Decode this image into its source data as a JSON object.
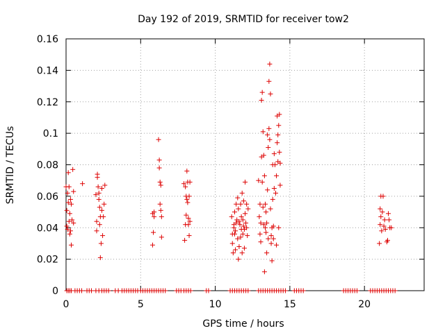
{
  "chart_data": {
    "type": "scatter",
    "title": "Day 192 of 2019, SRMTID for receiver tow2",
    "xlabel": "GPS time / hours",
    "ylabel": "SRMTID / TECUs",
    "xlim": [
      0,
      24
    ],
    "ylim": [
      0,
      0.16
    ],
    "xticks": [
      0,
      5,
      10,
      15,
      20
    ],
    "xtick_labels": [
      "0",
      "5",
      "10",
      "15",
      "20"
    ],
    "yticks": [
      0,
      0.02,
      0.04,
      0.06,
      0.08,
      0.1,
      0.12,
      0.14,
      0.16
    ],
    "ytick_labels": [
      "0",
      "0.02",
      "0.04",
      "0.06",
      "0.08",
      "0.1",
      "0.12",
      "0.14",
      "0.16"
    ],
    "grid": true,
    "marker": "plus",
    "color": "#dd0000",
    "series": [
      {
        "name": "SRMTID",
        "points": [
          [
            0.0,
            0.066
          ],
          [
            0.05,
            0.051
          ],
          [
            0.05,
            0.041
          ],
          [
            0.1,
            0.039
          ],
          [
            0.1,
            0.062
          ],
          [
            0.15,
            0.056
          ],
          [
            0.15,
            0.075
          ],
          [
            0.2,
            0.066
          ],
          [
            0.2,
            0.044
          ],
          [
            0.25,
            0.036
          ],
          [
            0.25,
            0.049
          ],
          [
            0.3,
            0.038
          ],
          [
            0.3,
            0.058
          ],
          [
            0.35,
            0.029
          ],
          [
            0.35,
            0.055
          ],
          [
            0.4,
            0.045
          ],
          [
            0.45,
            0.077
          ],
          [
            0.5,
            0.043
          ],
          [
            0.5,
            0.063
          ],
          [
            1.1,
            0.068
          ],
          [
            2.0,
            0.061
          ],
          [
            2.05,
            0.044
          ],
          [
            2.05,
            0.038
          ],
          [
            2.1,
            0.074
          ],
          [
            2.1,
            0.072
          ],
          [
            2.15,
            0.066
          ],
          [
            2.2,
            0.062
          ],
          [
            2.2,
            0.058
          ],
          [
            2.25,
            0.042
          ],
          [
            2.25,
            0.053
          ],
          [
            2.3,
            0.021
          ],
          [
            2.3,
            0.047
          ],
          [
            2.35,
            0.03
          ],
          [
            2.4,
            0.065
          ],
          [
            2.4,
            0.051
          ],
          [
            2.45,
            0.035
          ],
          [
            2.5,
            0.047
          ],
          [
            2.55,
            0.055
          ],
          [
            2.6,
            0.067
          ],
          [
            5.8,
            0.029
          ],
          [
            5.8,
            0.049
          ],
          [
            5.85,
            0.037
          ],
          [
            5.9,
            0.047
          ],
          [
            5.9,
            0.05
          ],
          [
            6.2,
            0.096
          ],
          [
            6.25,
            0.083
          ],
          [
            6.25,
            0.078
          ],
          [
            6.3,
            0.069
          ],
          [
            6.3,
            0.055
          ],
          [
            6.35,
            0.067
          ],
          [
            6.35,
            0.051
          ],
          [
            6.4,
            0.034
          ],
          [
            6.4,
            0.047
          ],
          [
            7.9,
            0.068
          ],
          [
            7.95,
            0.032
          ],
          [
            8.0,
            0.042
          ],
          [
            8.0,
            0.066
          ],
          [
            8.05,
            0.048
          ],
          [
            8.05,
            0.06
          ],
          [
            8.1,
            0.076
          ],
          [
            8.1,
            0.058
          ],
          [
            8.15,
            0.056
          ],
          [
            8.15,
            0.069
          ],
          [
            8.2,
            0.046
          ],
          [
            8.2,
            0.042
          ],
          [
            8.25,
            0.035
          ],
          [
            8.25,
            0.06
          ],
          [
            8.3,
            0.069
          ],
          [
            8.3,
            0.044
          ],
          [
            11.1,
            0.047
          ],
          [
            11.15,
            0.036
          ],
          [
            11.15,
            0.03
          ],
          [
            11.2,
            0.024
          ],
          [
            11.25,
            0.042
          ],
          [
            11.25,
            0.04
          ],
          [
            11.3,
            0.036
          ],
          [
            11.3,
            0.05
          ],
          [
            11.35,
            0.026
          ],
          [
            11.35,
            0.038
          ],
          [
            11.4,
            0.055
          ],
          [
            11.4,
            0.043
          ],
          [
            11.45,
            0.045
          ],
          [
            11.5,
            0.033
          ],
          [
            11.5,
            0.059
          ],
          [
            11.55,
            0.02
          ],
          [
            11.55,
            0.052
          ],
          [
            11.6,
            0.044
          ],
          [
            11.6,
            0.028
          ],
          [
            11.65,
            0.042
          ],
          [
            11.7,
            0.055
          ],
          [
            11.7,
            0.034
          ],
          [
            11.75,
            0.039
          ],
          [
            11.75,
            0.047
          ],
          [
            11.8,
            0.024
          ],
          [
            11.8,
            0.062
          ],
          [
            11.85,
            0.045
          ],
          [
            11.85,
            0.036
          ],
          [
            11.9,
            0.041
          ],
          [
            11.9,
            0.057
          ],
          [
            11.95,
            0.039
          ],
          [
            11.95,
            0.027
          ],
          [
            12.0,
            0.069
          ],
          [
            12.0,
            0.049
          ],
          [
            12.05,
            0.043
          ],
          [
            12.1,
            0.04
          ],
          [
            12.1,
            0.055
          ],
          [
            12.15,
            0.035
          ],
          [
            12.2,
            0.052
          ],
          [
            12.9,
            0.07
          ],
          [
            12.95,
            0.047
          ],
          [
            13.0,
            0.055
          ],
          [
            13.0,
            0.036
          ],
          [
            13.05,
            0.043
          ],
          [
            13.05,
            0.031
          ],
          [
            13.1,
            0.121
          ],
          [
            13.1,
            0.085
          ],
          [
            13.15,
            0.126
          ],
          [
            13.15,
            0.069
          ],
          [
            13.2,
            0.101
          ],
          [
            13.2,
            0.053
          ],
          [
            13.25,
            0.086
          ],
          [
            13.25,
            0.042
          ],
          [
            13.3,
            0.012
          ],
          [
            13.3,
            0.073
          ],
          [
            13.35,
            0.04
          ],
          [
            13.35,
            0.055
          ],
          [
            13.4,
            0.037
          ],
          [
            13.4,
            0.05
          ],
          [
            13.45,
            0.024
          ],
          [
            13.45,
            0.043
          ],
          [
            13.5,
            0.099
          ],
          [
            13.5,
            0.064
          ],
          [
            13.55,
            0.091
          ],
          [
            13.55,
            0.033
          ],
          [
            13.6,
            0.133
          ],
          [
            13.6,
            0.103
          ],
          [
            13.65,
            0.144
          ],
          [
            13.65,
            0.096
          ],
          [
            13.7,
            0.125
          ],
          [
            13.7,
            0.052
          ],
          [
            13.75,
            0.035
          ],
          [
            13.75,
            0.03
          ],
          [
            13.8,
            0.019
          ],
          [
            13.8,
            0.04
          ],
          [
            13.85,
            0.08
          ],
          [
            13.85,
            0.058
          ],
          [
            13.9,
            0.033
          ],
          [
            13.9,
            0.041
          ],
          [
            13.95,
            0.087
          ],
          [
            13.95,
            0.065
          ],
          [
            14.0,
            0.08
          ],
          [
            14.05,
            0.062
          ],
          [
            14.1,
            0.029
          ],
          [
            14.1,
            0.073
          ],
          [
            14.15,
            0.111
          ],
          [
            14.15,
            0.094
          ],
          [
            14.2,
            0.099
          ],
          [
            14.2,
            0.082
          ],
          [
            14.25,
            0.04
          ],
          [
            14.25,
            0.105
          ],
          [
            14.3,
            0.088
          ],
          [
            14.3,
            0.112
          ],
          [
            14.35,
            0.081
          ],
          [
            14.35,
            0.067
          ],
          [
            21.0,
            0.03
          ],
          [
            21.05,
            0.042
          ],
          [
            21.05,
            0.052
          ],
          [
            21.1,
            0.06
          ],
          [
            21.1,
            0.047
          ],
          [
            21.15,
            0.038
          ],
          [
            21.2,
            0.05
          ],
          [
            21.25,
            0.06
          ],
          [
            21.3,
            0.041
          ],
          [
            21.35,
            0.045
          ],
          [
            21.4,
            0.039
          ],
          [
            21.5,
            0.031
          ],
          [
            21.55,
            0.032
          ],
          [
            21.6,
            0.049
          ],
          [
            21.65,
            0.045
          ],
          [
            21.7,
            0.04
          ],
          [
            21.8,
            0.04
          ]
        ]
      },
      {
        "name": "zero-values",
        "points": [
          [
            0.05,
            0
          ],
          [
            0.15,
            0
          ],
          [
            0.25,
            0
          ],
          [
            0.35,
            0
          ],
          [
            0.6,
            0
          ],
          [
            0.75,
            0
          ],
          [
            0.9,
            0
          ],
          [
            1.05,
            0
          ],
          [
            1.4,
            0
          ],
          [
            1.55,
            0
          ],
          [
            1.7,
            0
          ],
          [
            2.0,
            0
          ],
          [
            2.2,
            0
          ],
          [
            2.4,
            0
          ],
          [
            2.55,
            0
          ],
          [
            2.7,
            0
          ],
          [
            2.85,
            0
          ],
          [
            3.3,
            0
          ],
          [
            3.5,
            0
          ],
          [
            3.75,
            0
          ],
          [
            3.9,
            0
          ],
          [
            4.05,
            0
          ],
          [
            4.2,
            0
          ],
          [
            4.35,
            0
          ],
          [
            4.5,
            0
          ],
          [
            4.65,
            0
          ],
          [
            4.8,
            0
          ],
          [
            5.0,
            0
          ],
          [
            5.15,
            0
          ],
          [
            5.3,
            0
          ],
          [
            5.45,
            0
          ],
          [
            5.6,
            0
          ],
          [
            5.75,
            0
          ],
          [
            5.9,
            0
          ],
          [
            6.05,
            0
          ],
          [
            6.2,
            0
          ],
          [
            6.35,
            0
          ],
          [
            6.5,
            0
          ],
          [
            6.65,
            0
          ],
          [
            7.4,
            0
          ],
          [
            7.55,
            0
          ],
          [
            7.7,
            0
          ],
          [
            7.9,
            0
          ],
          [
            8.05,
            0
          ],
          [
            8.2,
            0
          ],
          [
            8.35,
            0
          ],
          [
            9.4,
            0
          ],
          [
            9.55,
            0
          ],
          [
            11.0,
            0
          ],
          [
            11.15,
            0
          ],
          [
            11.3,
            0
          ],
          [
            11.45,
            0
          ],
          [
            11.6,
            0
          ],
          [
            11.75,
            0
          ],
          [
            11.9,
            0
          ],
          [
            12.05,
            0
          ],
          [
            12.2,
            0
          ],
          [
            12.9,
            0
          ],
          [
            13.05,
            0
          ],
          [
            13.2,
            0
          ],
          [
            13.35,
            0
          ],
          [
            13.5,
            0
          ],
          [
            13.65,
            0
          ],
          [
            13.8,
            0
          ],
          [
            13.95,
            0
          ],
          [
            14.1,
            0
          ],
          [
            14.25,
            0
          ],
          [
            14.4,
            0
          ],
          [
            14.55,
            0
          ],
          [
            14.7,
            0
          ],
          [
            15.3,
            0
          ],
          [
            15.45,
            0
          ],
          [
            15.6,
            0
          ],
          [
            15.75,
            0
          ],
          [
            15.9,
            0
          ],
          [
            18.6,
            0
          ],
          [
            18.75,
            0
          ],
          [
            18.9,
            0
          ],
          [
            19.05,
            0
          ],
          [
            19.2,
            0
          ],
          [
            19.35,
            0
          ],
          [
            19.5,
            0
          ],
          [
            20.4,
            0
          ],
          [
            20.55,
            0
          ],
          [
            20.7,
            0
          ],
          [
            20.85,
            0
          ],
          [
            21.0,
            0
          ],
          [
            21.15,
            0
          ],
          [
            21.3,
            0
          ],
          [
            21.45,
            0
          ],
          [
            21.6,
            0
          ],
          [
            21.75,
            0
          ],
          [
            21.9,
            0
          ],
          [
            22.05,
            0
          ]
        ]
      }
    ]
  }
}
